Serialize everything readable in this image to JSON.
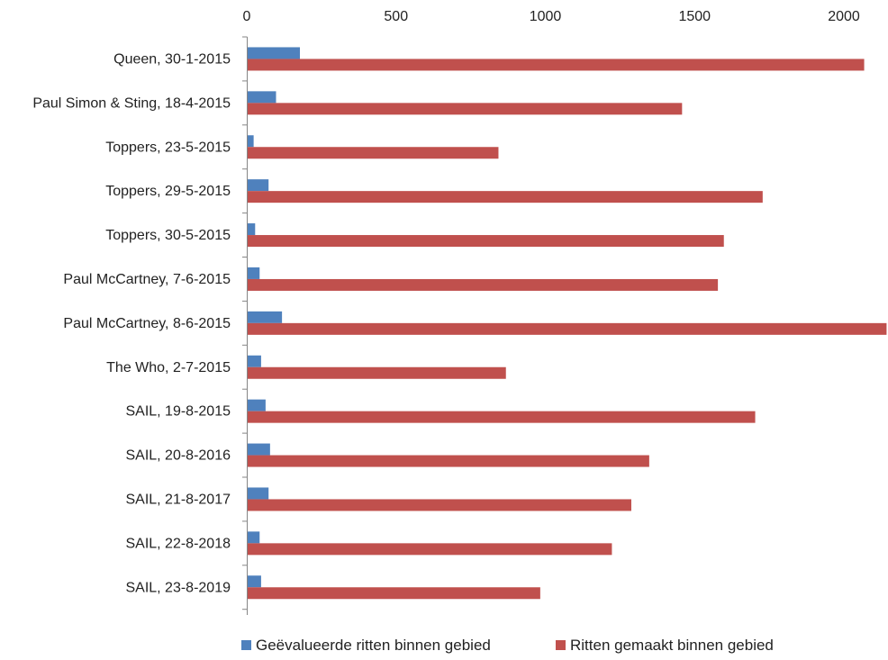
{
  "chart_data": {
    "type": "bar",
    "orientation": "horizontal",
    "x_axis_position": "top",
    "xlim": [
      0,
      2150
    ],
    "xticks": [
      0,
      500,
      1000,
      1500,
      2000
    ],
    "xtick_labels": [
      "0",
      "500",
      "1000",
      "1500",
      "2000"
    ],
    "categories": [
      "Queen, 30-1-2015",
      "Paul Simon & Sting, 18-4-2015",
      "Toppers, 23-5-2015",
      "Toppers, 29-5-2015",
      "Toppers, 30-5-2015",
      "Paul McCartney, 7-6-2015",
      "Paul McCartney, 8-6-2015",
      "The Who, 2-7-2015",
      "SAIL, 19-8-2015",
      "SAIL, 20-8-2016",
      "SAIL, 21-8-2017",
      "SAIL, 22-8-2018",
      "SAIL, 23-8-2019"
    ],
    "series": [
      {
        "name": "Geëvalueerde ritten binnen gebied",
        "color": "#4F81BD",
        "values": [
          175,
          95,
          20,
          70,
          25,
          40,
          115,
          45,
          60,
          75,
          70,
          40,
          45
        ]
      },
      {
        "name": "Ritten gemaakt binnen gebied",
        "color": "#C0504D",
        "values": [
          2065,
          1455,
          840,
          1725,
          1595,
          1575,
          2140,
          865,
          1700,
          1345,
          1285,
          1220,
          980
        ]
      }
    ],
    "grid": false,
    "legend_position": "bottom"
  }
}
